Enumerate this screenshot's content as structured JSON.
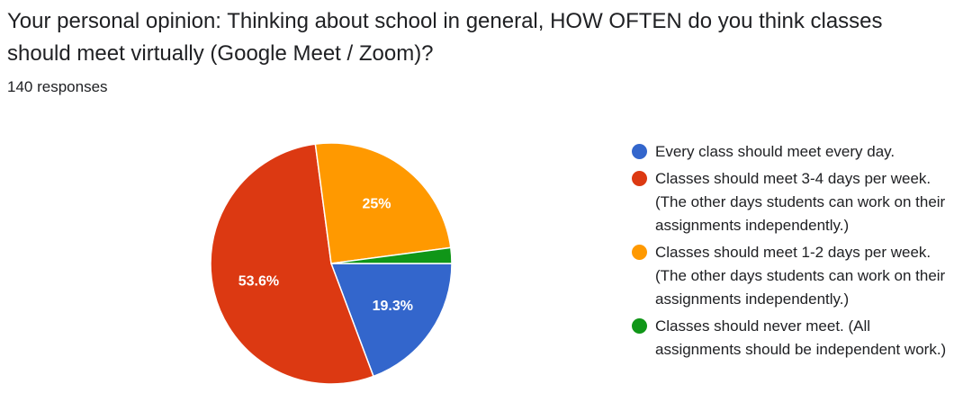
{
  "question": {
    "title": "Your personal opinion: Thinking about school in general, HOW OFTEN do you think classes should meet virtually (Google Meet / Zoom)?",
    "responses": "140 responses"
  },
  "chart_data": {
    "type": "pie",
    "series": [
      {
        "name": "Every class should meet every day.",
        "value": 19.3,
        "label": "19.3%",
        "color": "#3366cc"
      },
      {
        "name": "Classes should meet 3-4 days per week. (The other days students can work on their assignments independently.)",
        "value": 53.6,
        "label": "53.6%",
        "color": "#dc3912"
      },
      {
        "name": "Classes should meet 1-2 days per week. (The other days students can work on their assignments independently.)",
        "value": 25.0,
        "label": "25%",
        "color": "#ff9900"
      },
      {
        "name": "Classes should never meet. (All assignments should be independent work.)",
        "value": 2.1,
        "label": "",
        "color": "#109618"
      }
    ],
    "legend_position": "right"
  }
}
